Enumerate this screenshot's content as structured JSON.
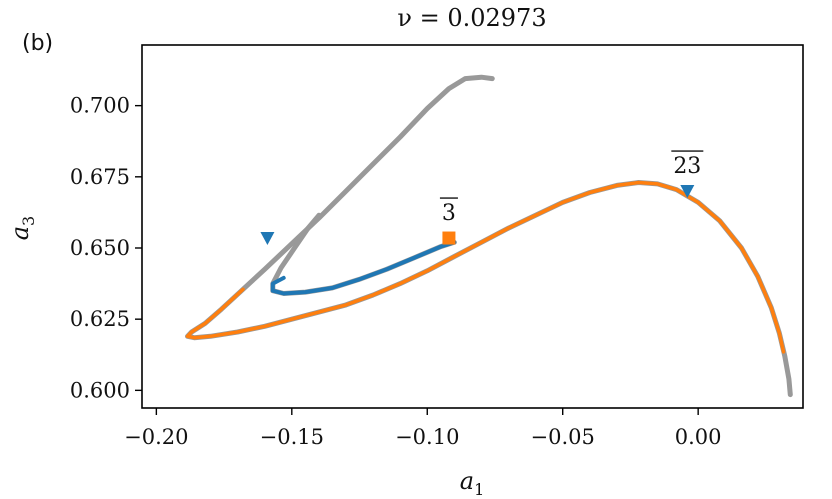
{
  "chart_data": {
    "type": "line",
    "panel_label": "(b)",
    "title": "ν = 0.02973",
    "xlabel": "a",
    "xlabel_sub": "1",
    "ylabel": "a",
    "ylabel_sub": "3",
    "xlim": [
      -0.2053,
      0.0387
    ],
    "ylim": [
      0.5938,
      0.7213
    ],
    "xticks": [
      -0.2,
      -0.15,
      -0.1,
      -0.05,
      0.0
    ],
    "xtick_labels": [
      "−0.20",
      "−0.15",
      "−0.10",
      "−0.05",
      "0.00"
    ],
    "yticks": [
      0.6,
      0.625,
      0.65,
      0.675,
      0.7
    ],
    "ytick_labels": [
      "0.600",
      "0.625",
      "0.650",
      "0.675",
      "0.700"
    ],
    "grid": false,
    "colors": {
      "gray": "#999999",
      "blue": "#1f77b4",
      "orange": "#ff7f0e"
    },
    "series": [
      {
        "color": "gray",
        "points": [
          [
            -0.076,
            0.7095
          ],
          [
            -0.08,
            0.71
          ],
          [
            -0.086,
            0.7095
          ],
          [
            -0.092,
            0.706
          ],
          [
            -0.1,
            0.699
          ],
          [
            -0.11,
            0.689
          ],
          [
            -0.12,
            0.6795
          ],
          [
            -0.13,
            0.67
          ],
          [
            -0.14,
            0.6605
          ],
          [
            -0.15,
            0.6515
          ],
          [
            -0.16,
            0.6425
          ],
          [
            -0.168,
            0.6355
          ],
          [
            -0.176,
            0.6285
          ],
          [
            -0.182,
            0.6235
          ],
          [
            -0.187,
            0.6205
          ],
          [
            -0.1885,
            0.619
          ],
          [
            -0.186,
            0.6185
          ],
          [
            -0.18,
            0.619
          ],
          [
            -0.17,
            0.6205
          ],
          [
            -0.16,
            0.6225
          ],
          [
            -0.15,
            0.625
          ],
          [
            -0.14,
            0.6275
          ],
          [
            -0.13,
            0.63
          ],
          [
            -0.12,
            0.6335
          ],
          [
            -0.11,
            0.6375
          ],
          [
            -0.1,
            0.642
          ],
          [
            -0.09,
            0.647
          ],
          [
            -0.08,
            0.652
          ],
          [
            -0.07,
            0.657
          ],
          [
            -0.06,
            0.6615
          ],
          [
            -0.05,
            0.666
          ],
          [
            -0.04,
            0.6695
          ],
          [
            -0.03,
            0.672
          ],
          [
            -0.022,
            0.673
          ],
          [
            -0.015,
            0.6725
          ],
          [
            -0.008,
            0.6705
          ],
          [
            0.0,
            0.666
          ],
          [
            0.008,
            0.6595
          ],
          [
            0.016,
            0.65
          ],
          [
            0.022,
            0.64
          ],
          [
            0.027,
            0.629
          ],
          [
            0.03,
            0.62
          ],
          [
            0.032,
            0.612
          ],
          [
            0.0335,
            0.604
          ],
          [
            0.034,
            0.5985
          ]
        ]
      },
      {
        "color": "gray",
        "points": [
          [
            -0.14,
            0.6615
          ],
          [
            -0.144,
            0.657
          ],
          [
            -0.149,
            0.65
          ],
          [
            -0.154,
            0.643
          ],
          [
            -0.157,
            0.6375
          ],
          [
            -0.157,
            0.635
          ],
          [
            -0.153,
            0.634
          ],
          [
            -0.145,
            0.6345
          ],
          [
            -0.135,
            0.636
          ],
          [
            -0.125,
            0.639
          ],
          [
            -0.115,
            0.6425
          ],
          [
            -0.105,
            0.6465
          ],
          [
            -0.095,
            0.6505
          ],
          [
            -0.09,
            0.652
          ]
        ]
      },
      {
        "color": "blue",
        "points": [
          [
            -0.153,
            0.6395
          ],
          [
            -0.157,
            0.6375
          ],
          [
            -0.157,
            0.635
          ],
          [
            -0.153,
            0.634
          ],
          [
            -0.145,
            0.6345
          ],
          [
            -0.135,
            0.636
          ],
          [
            -0.125,
            0.639
          ],
          [
            -0.115,
            0.6425
          ],
          [
            -0.105,
            0.6465
          ],
          [
            -0.095,
            0.6505
          ],
          [
            -0.09,
            0.652
          ]
        ]
      },
      {
        "color": "orange",
        "points": [
          [
            -0.168,
            0.6355
          ],
          [
            -0.176,
            0.6285
          ],
          [
            -0.182,
            0.6235
          ],
          [
            -0.187,
            0.6205
          ],
          [
            -0.1885,
            0.619
          ],
          [
            -0.186,
            0.6185
          ],
          [
            -0.18,
            0.619
          ],
          [
            -0.17,
            0.6205
          ],
          [
            -0.16,
            0.6225
          ],
          [
            -0.15,
            0.625
          ],
          [
            -0.14,
            0.6275
          ],
          [
            -0.13,
            0.63
          ],
          [
            -0.12,
            0.6335
          ],
          [
            -0.11,
            0.6375
          ],
          [
            -0.1,
            0.642
          ],
          [
            -0.09,
            0.647
          ],
          [
            -0.08,
            0.652
          ],
          [
            -0.07,
            0.657
          ],
          [
            -0.06,
            0.6615
          ],
          [
            -0.05,
            0.666
          ],
          [
            -0.04,
            0.6695
          ],
          [
            -0.03,
            0.672
          ],
          [
            -0.022,
            0.673
          ],
          [
            -0.015,
            0.6725
          ],
          [
            -0.008,
            0.6705
          ],
          [
            0.0,
            0.666
          ],
          [
            0.008,
            0.6595
          ],
          [
            0.016,
            0.65
          ],
          [
            0.022,
            0.64
          ],
          [
            0.027,
            0.629
          ],
          [
            0.03,
            0.62
          ],
          [
            0.0315,
            0.6135
          ]
        ]
      }
    ],
    "markers": [
      {
        "x": -0.159,
        "y": 0.6535,
        "shape": "triangle-down",
        "color": "blue",
        "label": ""
      },
      {
        "x": -0.092,
        "y": 0.6535,
        "shape": "square",
        "color": "orange",
        "label": "3"
      },
      {
        "x": -0.004,
        "y": 0.67,
        "shape": "triangle-down",
        "color": "blue",
        "label": "23"
      }
    ]
  }
}
